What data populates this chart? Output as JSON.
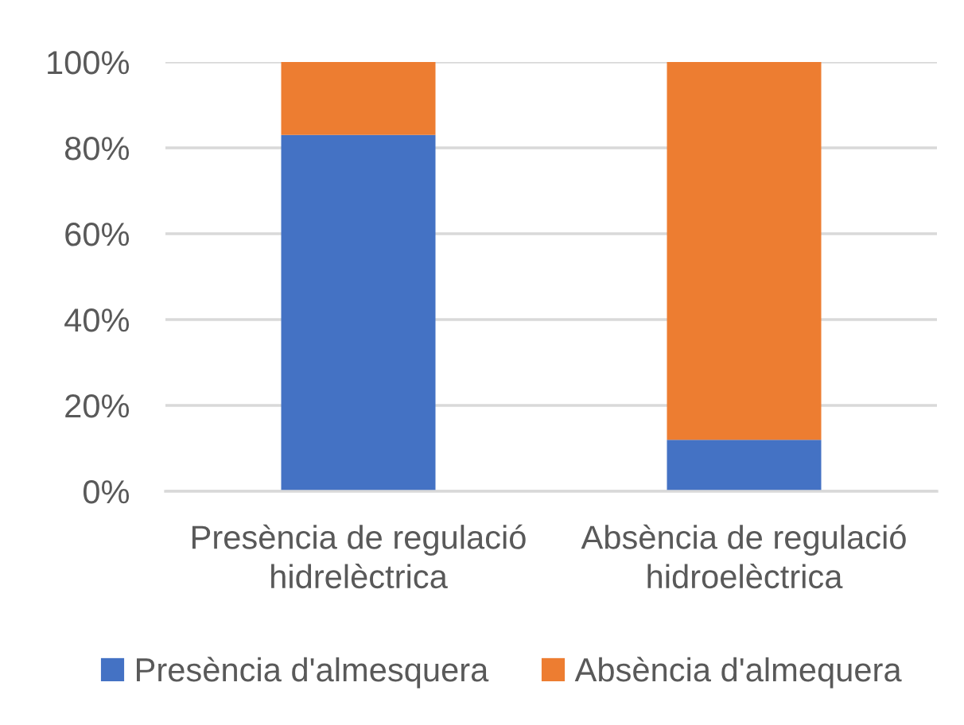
{
  "chart_data": {
    "type": "bar",
    "stacked": true,
    "categories": [
      "Presència de regulació\nhidrelèctrica",
      "Absència de regulació\nhidroelèctrica"
    ],
    "series": [
      {
        "name": "Presència d'almesquera",
        "color": "#4472c4",
        "values": [
          83,
          12
        ]
      },
      {
        "name": "Absència d'almequera",
        "color": "#ed7d31",
        "values": [
          17,
          88
        ]
      }
    ],
    "ylim": [
      0,
      100
    ],
    "yticks": [
      {
        "value": 0,
        "label": "0%"
      },
      {
        "value": 20,
        "label": "20%"
      },
      {
        "value": 40,
        "label": "40%"
      },
      {
        "value": 60,
        "label": "60%"
      },
      {
        "value": 80,
        "label": "80%"
      },
      {
        "value": 100,
        "label": "100%"
      }
    ],
    "grid": "y",
    "legend": "bottom"
  }
}
